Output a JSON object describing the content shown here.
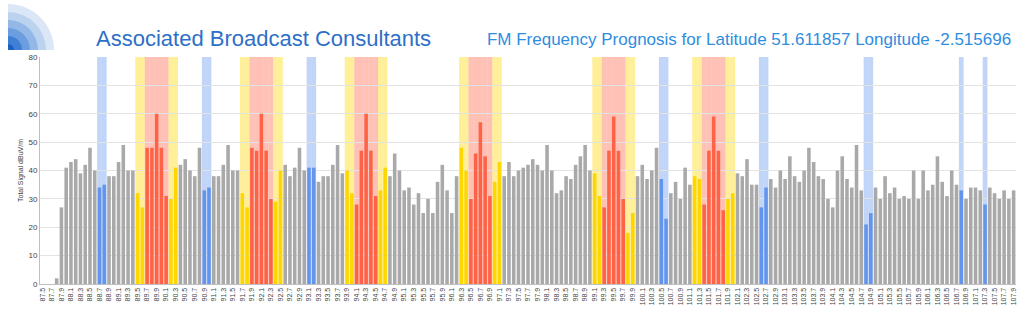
{
  "chart_data": {
    "type": "bar",
    "title": "FM Frequency Prognosis for Latitude 51.611857 Longitude -2.515696",
    "annotations": [
      "Associated Broadcast Consultants"
    ],
    "y_label": "Total Signal dBuV/m",
    "categories": [
      "87.5",
      null,
      "87.7",
      null,
      "87.9",
      null,
      "88.1",
      null,
      "88.3",
      null,
      "88.5",
      null,
      "88.7",
      null,
      "88.9",
      null,
      "89.1",
      null,
      "89.3",
      null,
      "89.5",
      null,
      "89.7",
      null,
      "89.9",
      null,
      "90.1",
      null,
      "90.3",
      null,
      "90.5",
      null,
      "90.7",
      null,
      "90.9",
      null,
      "91.1",
      null,
      "91.3",
      null,
      "91.5",
      null,
      "91.7",
      null,
      "91.9",
      null,
      "92.1",
      null,
      "92.3",
      null,
      "92.5",
      null,
      "92.7",
      null,
      "92.9",
      null,
      "93.1",
      null,
      "93.3",
      null,
      "93.5",
      null,
      "93.7",
      null,
      "93.9",
      null,
      "94.1",
      null,
      "94.3",
      null,
      "94.5",
      null,
      "94.7",
      null,
      "94.9",
      null,
      "95.1",
      null,
      "95.3",
      null,
      "95.5",
      null,
      "95.7",
      null,
      "95.9",
      null,
      "96.1",
      null,
      "96.3",
      null,
      "96.5",
      null,
      "96.7",
      null,
      "96.9",
      null,
      "97.1",
      null,
      "97.3",
      null,
      "97.5",
      null,
      "97.7",
      null,
      "97.9",
      null,
      "98.1",
      null,
      "98.3",
      null,
      "98.5",
      null,
      "98.7",
      null,
      "98.9",
      null,
      "99.1",
      null,
      "99.3",
      null,
      "99.5",
      null,
      "99.7",
      null,
      "99.9",
      null,
      "100.1",
      null,
      "100.3",
      null,
      "100.5",
      null,
      "100.7",
      null,
      "100.9",
      null,
      "101.1",
      null,
      "101.3",
      null,
      "101.5",
      null,
      "101.7",
      null,
      "101.9",
      null,
      "102.1",
      null,
      "102.3",
      null,
      "102.5",
      null,
      "102.7",
      null,
      "102.9",
      null,
      "103.1",
      null,
      "103.3",
      null,
      "103.5",
      null,
      "103.7",
      null,
      "103.9",
      null,
      "104.1",
      null,
      "104.3",
      null,
      "104.5",
      null,
      "104.7",
      null,
      "104.9",
      null,
      "105.1",
      null,
      "105.3",
      null,
      "105.5",
      null,
      "105.7",
      null,
      "105.9",
      null,
      "106.1",
      null,
      "106.3",
      null,
      "106.5",
      null,
      "106.7",
      null,
      "106.9",
      null,
      "107.1",
      null,
      "107.3",
      null,
      "107.5",
      null,
      "107.7",
      null,
      "107.9"
    ],
    "values": [
      0,
      0,
      0,
      2,
      27,
      41,
      43,
      44,
      39,
      42,
      48,
      40,
      34,
      35,
      38,
      38,
      43,
      49,
      40,
      40,
      32,
      27,
      48,
      48,
      60,
      48,
      31,
      30,
      41,
      42,
      44,
      40,
      38,
      48,
      33,
      34,
      38,
      38,
      42,
      49,
      40,
      40,
      32,
      27,
      48,
      47,
      60,
      47,
      30,
      29,
      40,
      42,
      38,
      41,
      48,
      40,
      41,
      41,
      36,
      38,
      38,
      42,
      49,
      39,
      40,
      32,
      28,
      47,
      60,
      47,
      31,
      33,
      41,
      38,
      46,
      40,
      33,
      34,
      28,
      32,
      25,
      30,
      25,
      36,
      42,
      33,
      25,
      38,
      48,
      40,
      30,
      46,
      57,
      45,
      31,
      36,
      43,
      38,
      43,
      38,
      40,
      41,
      42,
      44,
      42,
      40,
      49,
      40,
      32,
      33,
      38,
      37,
      42,
      45,
      49,
      40,
      39,
      31,
      27,
      47,
      59,
      47,
      30,
      18,
      25,
      38,
      42,
      37,
      40,
      48,
      37,
      23,
      32,
      36,
      30,
      41,
      35,
      38,
      37,
      28,
      47,
      59,
      47,
      26,
      30,
      32,
      39,
      38,
      44,
      35,
      35,
      27,
      34,
      37,
      34,
      40,
      37,
      45,
      38,
      36,
      40,
      48,
      43,
      38,
      37,
      30,
      27,
      40,
      45,
      37,
      34,
      49,
      33,
      21,
      25,
      34,
      30,
      38,
      32,
      34,
      30,
      31,
      30,
      40,
      30,
      40,
      33,
      35,
      45,
      36,
      31,
      40,
      35,
      33,
      30,
      34,
      34,
      33,
      28,
      34,
      32,
      30,
      33,
      30,
      33
    ],
    "color": "darkgray",
    "colors": [
      "darkgray",
      "darkgray",
      "darkgray",
      "darkgray",
      "darkgray",
      "darkgray",
      "darkgray",
      "darkgray",
      "darkgray",
      "darkgray",
      "darkgray",
      "darkgray",
      "cornflowerblue",
      "cornflowerblue",
      "darkgray",
      "darkgray",
      "darkgray",
      "darkgray",
      "darkgray",
      "darkgray",
      "gold",
      "gold",
      "tomato",
      "tomato",
      "tomato",
      "tomato",
      "tomato",
      "gold",
      "gold",
      "darkgray",
      "darkgray",
      "darkgray",
      "darkgray",
      "darkgray",
      "cornflowerblue",
      "cornflowerblue",
      "darkgray",
      "darkgray",
      "darkgray",
      "darkgray",
      "darkgray",
      "darkgray",
      "gold",
      "gold",
      "tomato",
      "tomato",
      "tomato",
      "tomato",
      "tomato",
      "gold",
      "gold",
      "darkgray",
      "darkgray",
      "darkgray",
      "darkgray",
      "darkgray",
      "cornflowerblue",
      "cornflowerblue",
      "darkgray",
      "darkgray",
      "darkgray",
      "darkgray",
      "darkgray",
      "darkgray",
      "gold",
      "gold",
      "tomato",
      "tomato",
      "tomato",
      "tomato",
      "tomato",
      "gold",
      "gold",
      "darkgray",
      "darkgray",
      "darkgray",
      "darkgray",
      "darkgray",
      "darkgray",
      "darkgray",
      "darkgray",
      "darkgray",
      "darkgray",
      "darkgray",
      "darkgray",
      "darkgray",
      "darkgray",
      "darkgray",
      "gold",
      "gold",
      "tomato",
      "tomato",
      "tomato",
      "tomato",
      "tomato",
      "gold",
      "gold",
      "darkgray",
      "darkgray",
      "darkgray",
      "darkgray",
      "darkgray",
      "darkgray",
      "darkgray",
      "darkgray",
      "darkgray",
      "darkgray",
      "darkgray",
      "darkgray",
      "darkgray",
      "darkgray",
      "darkgray",
      "darkgray",
      "darkgray",
      "darkgray",
      "darkgray",
      "gold",
      "gold",
      "tomato",
      "tomato",
      "tomato",
      "tomato",
      "tomato",
      "gold",
      "gold",
      "darkgray",
      "darkgray",
      "darkgray",
      "darkgray",
      "darkgray",
      "cornflowerblue",
      "cornflowerblue",
      "darkgray",
      "darkgray",
      "darkgray",
      "darkgray",
      "darkgray",
      "gold",
      "gold",
      "tomato",
      "tomato",
      "tomato",
      "tomato",
      "tomato",
      "gold",
      "gold",
      "darkgray",
      "darkgray",
      "darkgray",
      "darkgray",
      "darkgray",
      "cornflowerblue",
      "cornflowerblue",
      "darkgray",
      "darkgray",
      "darkgray",
      "darkgray",
      "darkgray",
      "darkgray",
      "darkgray",
      "darkgray",
      "darkgray",
      "darkgray",
      "darkgray",
      "darkgray",
      "darkgray",
      "darkgray",
      "darkgray",
      "darkgray",
      "darkgray",
      "darkgray",
      "darkgray",
      "darkgray",
      "cornflowerblue",
      "cornflowerblue",
      "darkgray",
      "darkgray",
      "darkgray",
      "darkgray",
      "darkgray",
      "darkgray",
      "darkgray",
      "darkgray",
      "darkgray",
      "darkgray",
      "darkgray",
      "darkgray",
      "darkgray",
      "darkgray",
      "darkgray",
      "darkgray",
      "darkgray",
      "darkgray",
      "cornflowerblue",
      "darkgray",
      "darkgray",
      "darkgray",
      "darkgray",
      "cornflowerblue",
      "darkgray",
      "darkgray",
      "darkgray",
      "darkgray",
      "darkgray",
      "darkgray"
    ],
    "ylim": [
      0,
      80
    ],
    "yticks": [
      0,
      10,
      20,
      30,
      40,
      50,
      60,
      70,
      80
    ],
    "grid": true
  }
}
